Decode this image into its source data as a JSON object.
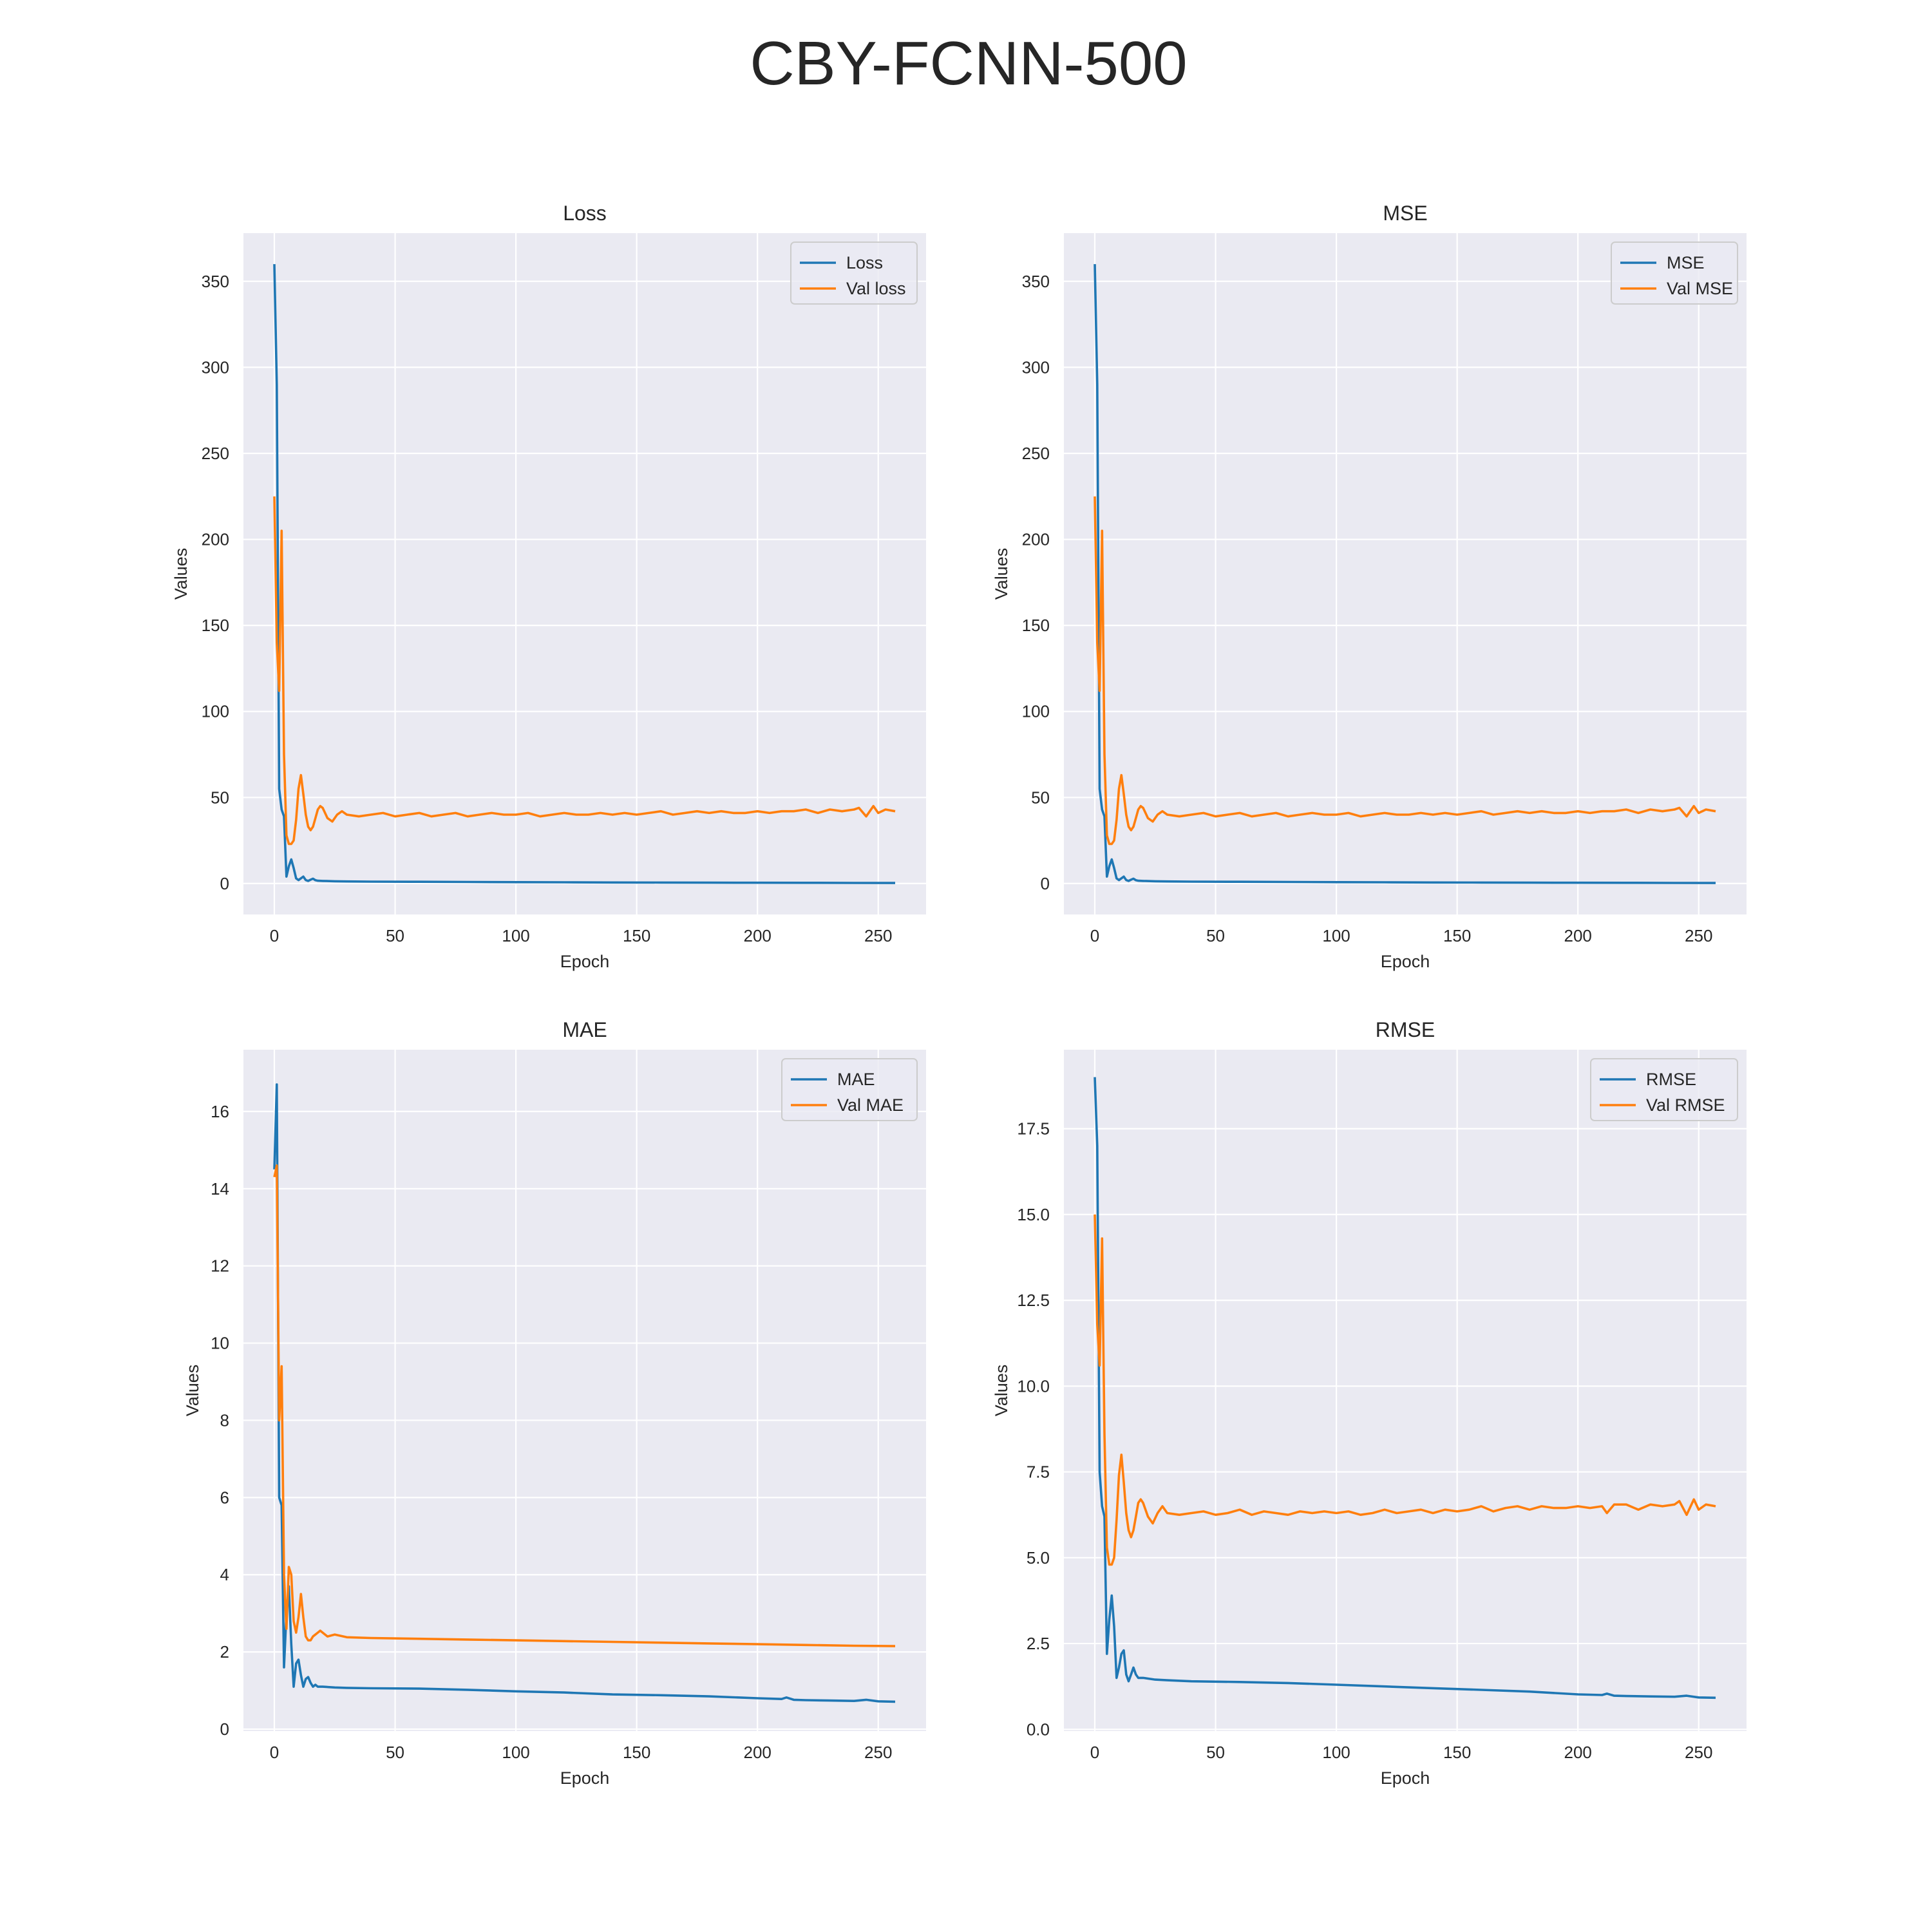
{
  "figure": {
    "title": "CBY-FCNN-500"
  },
  "colors": {
    "train": "#1f77b4",
    "val": "#ff7f0e",
    "plot_bg": "#eaeaf2",
    "grid": "#ffffff"
  },
  "chart_data": [
    {
      "type": "line",
      "title": "Loss",
      "xlabel": "Epoch",
      "ylabel": "Values",
      "xlim": [
        -12.8,
        269.8
      ],
      "ylim": [
        -18,
        378
      ],
      "xticks": [
        0,
        50,
        100,
        150,
        200,
        250
      ],
      "yticks": [
        0,
        50,
        100,
        150,
        200,
        250,
        300,
        350
      ],
      "legend_position": "top-right",
      "grid": true,
      "series": [
        {
          "name": "Loss",
          "color": "train",
          "x": [
            0,
            1,
            2,
            3,
            4,
            5,
            6,
            7,
            8,
            9,
            10,
            11,
            12,
            13,
            14,
            15,
            16,
            17,
            18,
            20,
            25,
            30,
            40,
            60,
            80,
            100,
            120,
            140,
            160,
            180,
            200,
            220,
            240,
            257
          ],
          "y": [
            360,
            290,
            55,
            43,
            39,
            4,
            10,
            14,
            9,
            3,
            2,
            3,
            4,
            2,
            1.5,
            2.2,
            2.8,
            1.9,
            1.6,
            1.5,
            1.3,
            1.2,
            1.1,
            1.0,
            0.9,
            0.8,
            0.7,
            0.6,
            0.55,
            0.5,
            0.45,
            0.4,
            0.35,
            0.3
          ]
        },
        {
          "name": "Val loss",
          "color": "val",
          "x": [
            0,
            1,
            2,
            3,
            4,
            5,
            6,
            7,
            8,
            9,
            10,
            11,
            12,
            13,
            14,
            15,
            16,
            17,
            18,
            19,
            20,
            22,
            24,
            26,
            28,
            30,
            35,
            40,
            45,
            50,
            55,
            60,
            65,
            70,
            75,
            80,
            85,
            90,
            95,
            100,
            105,
            110,
            115,
            120,
            125,
            130,
            135,
            140,
            145,
            150,
            155,
            160,
            165,
            170,
            175,
            180,
            185,
            190,
            195,
            200,
            205,
            210,
            215,
            220,
            225,
            230,
            235,
            240,
            242,
            245,
            248,
            250,
            253,
            257
          ],
          "y": [
            225,
            140,
            112,
            205,
            75,
            28,
            23,
            23,
            25,
            37,
            55,
            63,
            52,
            40,
            33,
            31,
            33,
            38,
            43,
            45,
            44,
            38,
            36,
            40,
            42,
            40,
            39,
            40,
            41,
            39,
            40,
            41,
            39,
            40,
            41,
            39,
            40,
            41,
            40,
            40,
            41,
            39,
            40,
            41,
            40,
            40,
            41,
            40,
            41,
            40,
            41,
            42,
            40,
            41,
            42,
            41,
            42,
            41,
            41,
            42,
            41,
            42,
            42,
            43,
            41,
            43,
            42,
            43,
            44,
            39,
            45,
            41,
            43,
            42
          ]
        }
      ]
    },
    {
      "type": "line",
      "title": "MSE",
      "xlabel": "Epoch",
      "ylabel": "Values",
      "xlim": [
        -12.8,
        269.8
      ],
      "ylim": [
        -18,
        378
      ],
      "xticks": [
        0,
        50,
        100,
        150,
        200,
        250
      ],
      "yticks": [
        0,
        50,
        100,
        150,
        200,
        250,
        300,
        350
      ],
      "legend_position": "top-right",
      "grid": true,
      "series": [
        {
          "name": "MSE",
          "color": "train",
          "x": [
            0,
            1,
            2,
            3,
            4,
            5,
            6,
            7,
            8,
            9,
            10,
            11,
            12,
            13,
            14,
            15,
            16,
            17,
            18,
            20,
            25,
            30,
            40,
            60,
            80,
            100,
            120,
            140,
            160,
            180,
            200,
            220,
            240,
            257
          ],
          "y": [
            360,
            290,
            55,
            43,
            39,
            4,
            10,
            14,
            9,
            3,
            2,
            3,
            4,
            2,
            1.5,
            2.2,
            2.8,
            1.9,
            1.6,
            1.5,
            1.3,
            1.2,
            1.1,
            1.0,
            0.9,
            0.8,
            0.7,
            0.6,
            0.55,
            0.5,
            0.45,
            0.4,
            0.35,
            0.3
          ]
        },
        {
          "name": "Val MSE",
          "color": "val",
          "x": [
            0,
            1,
            2,
            3,
            4,
            5,
            6,
            7,
            8,
            9,
            10,
            11,
            12,
            13,
            14,
            15,
            16,
            17,
            18,
            19,
            20,
            22,
            24,
            26,
            28,
            30,
            35,
            40,
            45,
            50,
            55,
            60,
            65,
            70,
            75,
            80,
            85,
            90,
            95,
            100,
            105,
            110,
            115,
            120,
            125,
            130,
            135,
            140,
            145,
            150,
            155,
            160,
            165,
            170,
            175,
            180,
            185,
            190,
            195,
            200,
            205,
            210,
            215,
            220,
            225,
            230,
            235,
            240,
            242,
            245,
            248,
            250,
            253,
            257
          ],
          "y": [
            225,
            140,
            112,
            205,
            75,
            28,
            23,
            23,
            25,
            37,
            55,
            63,
            52,
            40,
            33,
            31,
            33,
            38,
            43,
            45,
            44,
            38,
            36,
            40,
            42,
            40,
            39,
            40,
            41,
            39,
            40,
            41,
            39,
            40,
            41,
            39,
            40,
            41,
            40,
            40,
            41,
            39,
            40,
            41,
            40,
            40,
            41,
            40,
            41,
            40,
            41,
            42,
            40,
            41,
            42,
            41,
            42,
            41,
            41,
            42,
            41,
            42,
            42,
            43,
            41,
            43,
            42,
            43,
            44,
            39,
            45,
            41,
            43,
            42
          ]
        }
      ]
    },
    {
      "type": "line",
      "title": "MAE",
      "xlabel": "Epoch",
      "ylabel": "Values",
      "xlim": [
        -12.8,
        269.8
      ],
      "ylim": [
        -0.05,
        17.6
      ],
      "xticks": [
        0,
        50,
        100,
        150,
        200,
        250
      ],
      "yticks": [
        0,
        2,
        4,
        6,
        8,
        10,
        12,
        14,
        16
      ],
      "legend_position": "top-right",
      "grid": true,
      "series": [
        {
          "name": "MAE",
          "color": "train",
          "x": [
            0,
            1,
            2,
            3,
            4,
            5,
            6,
            7,
            8,
            9,
            10,
            11,
            12,
            13,
            14,
            15,
            16,
            17,
            18,
            20,
            25,
            30,
            40,
            60,
            80,
            100,
            120,
            140,
            160,
            180,
            200,
            210,
            212,
            215,
            220,
            230,
            240,
            245,
            250,
            257
          ],
          "y": [
            14.5,
            16.7,
            6.0,
            5.8,
            1.6,
            3.0,
            3.7,
            2.2,
            1.1,
            1.7,
            1.8,
            1.4,
            1.1,
            1.3,
            1.35,
            1.2,
            1.1,
            1.15,
            1.1,
            1.1,
            1.08,
            1.07,
            1.06,
            1.05,
            1.02,
            0.98,
            0.95,
            0.9,
            0.88,
            0.85,
            0.8,
            0.78,
            0.82,
            0.76,
            0.75,
            0.74,
            0.73,
            0.76,
            0.72,
            0.71
          ]
        },
        {
          "name": "Val MAE",
          "color": "val",
          "x": [
            0,
            1,
            2,
            3,
            4,
            5,
            6,
            7,
            8,
            9,
            10,
            11,
            12,
            13,
            14,
            15,
            16,
            17,
            18,
            19,
            20,
            22,
            25,
            30,
            40,
            60,
            80,
            100,
            120,
            140,
            160,
            180,
            200,
            220,
            240,
            257
          ],
          "y": [
            14.3,
            14.6,
            8.0,
            9.4,
            4.0,
            2.6,
            4.2,
            4.0,
            2.8,
            2.5,
            2.9,
            3.5,
            2.9,
            2.4,
            2.3,
            2.3,
            2.4,
            2.45,
            2.5,
            2.55,
            2.5,
            2.4,
            2.45,
            2.38,
            2.36,
            2.34,
            2.32,
            2.3,
            2.28,
            2.26,
            2.24,
            2.22,
            2.2,
            2.18,
            2.16,
            2.15
          ]
        }
      ]
    },
    {
      "type": "line",
      "title": "RMSE",
      "xlabel": "Epoch",
      "ylabel": "Values",
      "xlim": [
        -12.8,
        269.8
      ],
      "ylim": [
        -0.05,
        19.8
      ],
      "xticks": [
        0,
        50,
        100,
        150,
        200,
        250
      ],
      "yticks": [
        0.0,
        2.5,
        5.0,
        7.5,
        10.0,
        12.5,
        15.0,
        17.5
      ],
      "ytick_labels": [
        "0.0",
        "2.5",
        "5.0",
        "7.5",
        "10.0",
        "12.5",
        "15.0",
        "17.5"
      ],
      "legend_position": "top-right",
      "grid": true,
      "series": [
        {
          "name": "RMSE",
          "color": "train",
          "x": [
            0,
            1,
            2,
            3,
            4,
            5,
            6,
            7,
            8,
            9,
            10,
            11,
            12,
            13,
            14,
            15,
            16,
            17,
            18,
            20,
            25,
            30,
            40,
            60,
            80,
            100,
            120,
            140,
            160,
            180,
            200,
            210,
            212,
            215,
            220,
            230,
            240,
            245,
            250,
            257
          ],
          "y": [
            19.0,
            17.0,
            7.5,
            6.5,
            6.2,
            2.2,
            3.2,
            3.9,
            3.0,
            1.5,
            1.8,
            2.2,
            2.3,
            1.6,
            1.4,
            1.6,
            1.8,
            1.6,
            1.5,
            1.5,
            1.45,
            1.43,
            1.4,
            1.38,
            1.35,
            1.3,
            1.25,
            1.2,
            1.15,
            1.1,
            1.02,
            1.0,
            1.04,
            0.98,
            0.97,
            0.96,
            0.95,
            0.98,
            0.93,
            0.92
          ]
        },
        {
          "name": "Val RMSE",
          "color": "val",
          "x": [
            0,
            1,
            2,
            3,
            4,
            5,
            6,
            7,
            8,
            9,
            10,
            11,
            12,
            13,
            14,
            15,
            16,
            17,
            18,
            19,
            20,
            22,
            24,
            26,
            28,
            30,
            35,
            40,
            45,
            50,
            55,
            60,
            65,
            70,
            75,
            80,
            85,
            90,
            95,
            100,
            105,
            110,
            115,
            120,
            125,
            130,
            135,
            140,
            145,
            150,
            155,
            160,
            165,
            170,
            175,
            180,
            185,
            190,
            195,
            200,
            205,
            210,
            212,
            215,
            220,
            225,
            230,
            235,
            240,
            242,
            245,
            248,
            250,
            253,
            257
          ],
          "y": [
            15.0,
            11.8,
            10.6,
            14.3,
            8.6,
            5.3,
            4.8,
            4.8,
            5.0,
            6.1,
            7.4,
            8.0,
            7.2,
            6.3,
            5.8,
            5.6,
            5.8,
            6.2,
            6.6,
            6.7,
            6.6,
            6.2,
            6.0,
            6.3,
            6.5,
            6.3,
            6.25,
            6.3,
            6.35,
            6.25,
            6.3,
            6.4,
            6.25,
            6.35,
            6.3,
            6.25,
            6.35,
            6.3,
            6.35,
            6.3,
            6.35,
            6.25,
            6.3,
            6.4,
            6.3,
            6.35,
            6.4,
            6.3,
            6.4,
            6.35,
            6.4,
            6.5,
            6.35,
            6.45,
            6.5,
            6.4,
            6.5,
            6.45,
            6.45,
            6.5,
            6.45,
            6.5,
            6.3,
            6.55,
            6.55,
            6.4,
            6.55,
            6.5,
            6.55,
            6.65,
            6.25,
            6.7,
            6.4,
            6.55,
            6.5
          ]
        }
      ]
    }
  ]
}
